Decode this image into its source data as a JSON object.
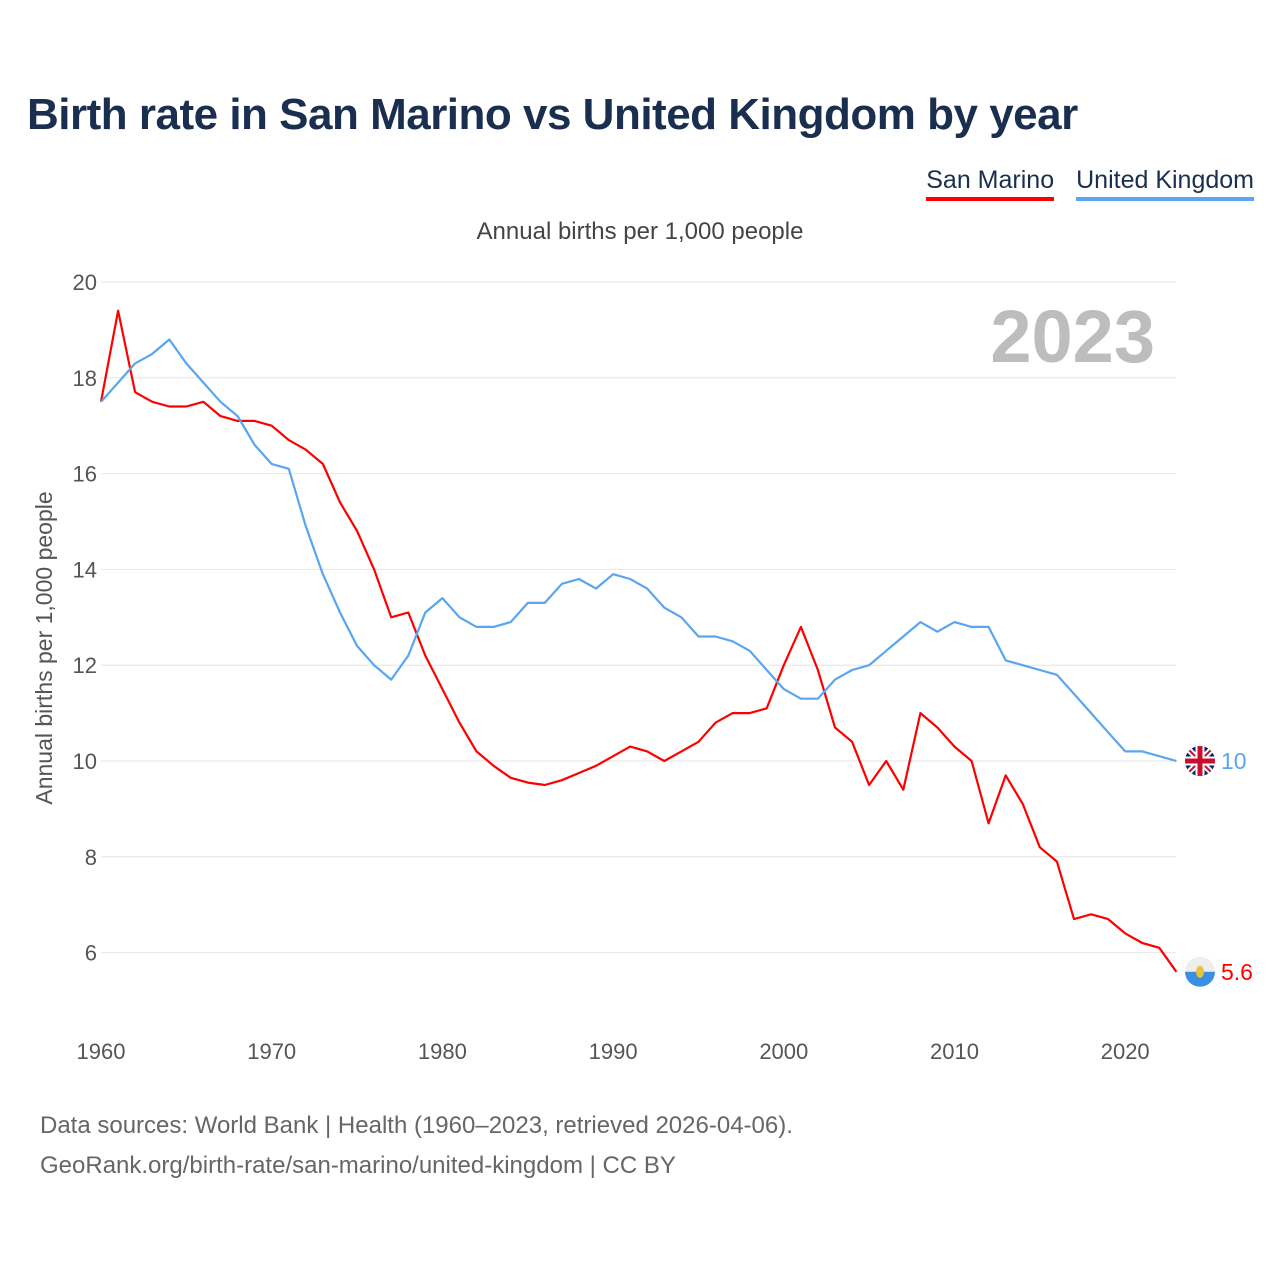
{
  "title": "Birth rate in San Marino vs United Kingdom by year",
  "footer": {
    "line1": "Data sources: World Bank | Health (1960–2023, retrieved 2026-04-06).",
    "line2": "GeoRank.org/birth-rate/san-marino/united-kingdom | CC BY"
  },
  "chart_data": {
    "type": "line",
    "title": "Birth rate in San Marino vs United Kingdom by year",
    "subtitle": "Annual births per 1,000 people",
    "ylabel": "Annual births per 1,000 people",
    "xlabel": "",
    "year_watermark": "2023",
    "ylim": [
      4.7,
      20
    ],
    "xlim": [
      1960,
      2023
    ],
    "yticks": [
      6,
      8,
      10,
      12,
      14,
      16,
      18,
      20
    ],
    "xticks": [
      1960,
      1970,
      1980,
      1990,
      2000,
      2010,
      2020
    ],
    "grid": true,
    "legend_position": "top-right",
    "x": [
      1960,
      1961,
      1962,
      1963,
      1964,
      1965,
      1966,
      1967,
      1968,
      1969,
      1970,
      1971,
      1972,
      1973,
      1974,
      1975,
      1976,
      1977,
      1978,
      1979,
      1980,
      1981,
      1982,
      1983,
      1984,
      1985,
      1986,
      1987,
      1988,
      1989,
      1990,
      1991,
      1992,
      1993,
      1994,
      1995,
      1996,
      1997,
      1998,
      1999,
      2000,
      2001,
      2002,
      2003,
      2004,
      2005,
      2006,
      2007,
      2008,
      2009,
      2010,
      2011,
      2012,
      2013,
      2014,
      2015,
      2016,
      2017,
      2018,
      2019,
      2020,
      2021,
      2022,
      2023
    ],
    "series": [
      {
        "name": "San Marino",
        "color": "#ff0000",
        "end_label": "5.6",
        "flag": "san-marino",
        "values": [
          17.5,
          19.4,
          17.7,
          17.5,
          17.4,
          17.4,
          17.5,
          17.2,
          17.1,
          17.1,
          17.0,
          16.7,
          16.5,
          16.2,
          15.4,
          14.8,
          14.0,
          13.0,
          13.1,
          12.2,
          11.5,
          10.8,
          10.2,
          9.9,
          9.65,
          9.55,
          9.5,
          9.6,
          9.75,
          9.9,
          10.1,
          10.3,
          10.2,
          10.0,
          10.2,
          10.4,
          10.8,
          11.0,
          11.0,
          11.1,
          12.0,
          12.8,
          11.9,
          10.7,
          10.4,
          9.5,
          10.0,
          9.4,
          11.0,
          10.7,
          10.3,
          10.0,
          8.7,
          9.7,
          9.1,
          8.2,
          7.9,
          6.7,
          6.8,
          6.7,
          6.4,
          6.2,
          6.1,
          5.6
        ]
      },
      {
        "name": "United Kingdom",
        "color": "#5aa5ef",
        "end_label": "10",
        "flag": "united-kingdom",
        "values": [
          17.5,
          17.9,
          18.3,
          18.5,
          18.8,
          18.3,
          17.9,
          17.5,
          17.2,
          16.6,
          16.2,
          16.1,
          14.9,
          13.9,
          13.1,
          12.4,
          12.0,
          11.7,
          12.2,
          13.1,
          13.4,
          13.0,
          12.8,
          12.8,
          12.9,
          13.3,
          13.3,
          13.7,
          13.8,
          13.6,
          13.9,
          13.8,
          13.6,
          13.2,
          13.0,
          12.6,
          12.6,
          12.5,
          12.3,
          11.9,
          11.5,
          11.3,
          11.3,
          11.7,
          11.9,
          12.0,
          12.3,
          12.6,
          12.9,
          12.7,
          12.9,
          12.8,
          12.8,
          12.1,
          12.0,
          11.9,
          11.8,
          11.4,
          11.0,
          10.6,
          10.2,
          10.2,
          10.1,
          10.0
        ]
      }
    ]
  }
}
